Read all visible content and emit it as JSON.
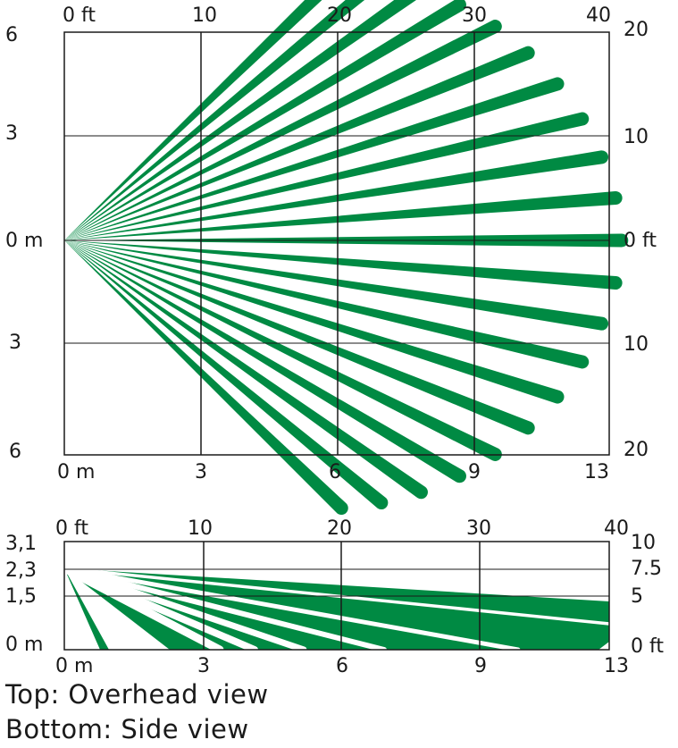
{
  "colors": {
    "beam": "#008a43",
    "grid": "#1a1a1a",
    "text": "#1a1a1a"
  },
  "overhead": {
    "top_ticks": [
      "0 ft",
      "10",
      "20",
      "30",
      "40"
    ],
    "bottom_ticks": [
      "0 m",
      "3",
      "6",
      "9",
      "13"
    ],
    "left_ticks": [
      "6",
      "3",
      "0 m",
      "3",
      "6"
    ],
    "right_ticks": [
      "20",
      "10",
      "0 ft",
      "10",
      "20"
    ],
    "beam_count": 21,
    "beam_angle_range_deg": [
      -44,
      44
    ],
    "beam_length_range_m": [
      9.2,
      13.3
    ]
  },
  "side": {
    "top_ticks": [
      "0 ft",
      "10",
      "20",
      "30",
      "40"
    ],
    "bottom_ticks": [
      "0 m",
      "3",
      "6",
      "9",
      "13"
    ],
    "left_ticks": [
      "3,1",
      "2,3",
      "1,5",
      "0 m"
    ],
    "right_ticks": [
      "10",
      "7.5",
      "5",
      "0 ft"
    ],
    "mount_height_m": 2.3
  },
  "captions": {
    "top": "Top: Overhead view",
    "bottom": "Bottom: Side view"
  }
}
